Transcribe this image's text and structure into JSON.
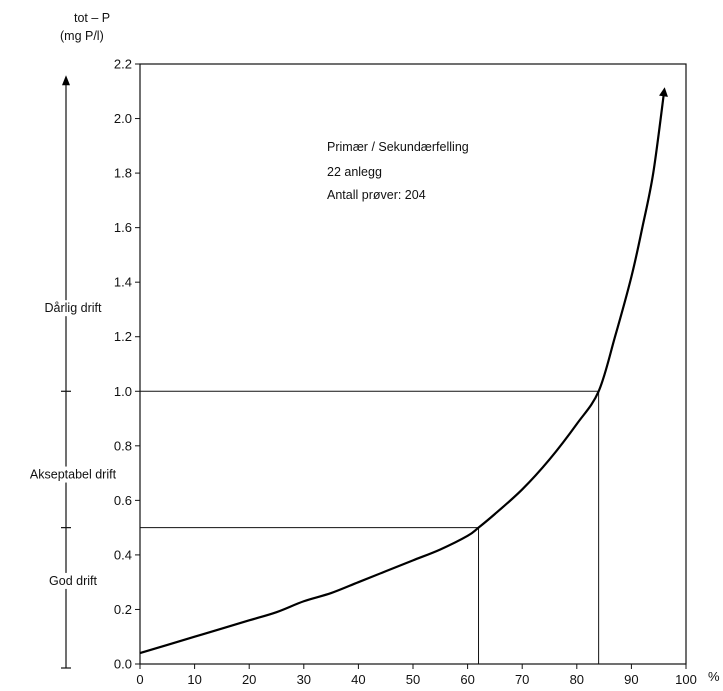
{
  "chart_data": {
    "type": "line",
    "ylabel_line1": "tot – P",
    "ylabel_line2": "(mg P/l)",
    "x_unit": "%",
    "xlim": [
      0,
      100
    ],
    "ylim": [
      0,
      2.2
    ],
    "x_ticks": [
      0,
      10,
      20,
      30,
      40,
      50,
      60,
      70,
      80,
      90,
      100
    ],
    "y_ticks": [
      0.0,
      0.2,
      0.4,
      0.6,
      0.8,
      1.0,
      1.2,
      1.4,
      1.6,
      1.8,
      2.0,
      2.2
    ],
    "y_tick_labels": [
      "0.0",
      "0.2",
      "0.4",
      "0.6",
      "0.8",
      "1.0",
      "1.2",
      "1.4",
      "1.6",
      "1.8",
      "2.0",
      "2.2"
    ],
    "annotation_lines": [
      "Primær / Sekundærfelling",
      "22  anlegg",
      "Antall prøver:  204"
    ],
    "series": [
      {
        "x": [
          0,
          5,
          10,
          15,
          20,
          25,
          30,
          35,
          40,
          45,
          50,
          55,
          60,
          62,
          65,
          70,
          75,
          80,
          84,
          87,
          90,
          92,
          94,
          96
        ],
        "y": [
          0.04,
          0.07,
          0.1,
          0.13,
          0.16,
          0.19,
          0.23,
          0.26,
          0.3,
          0.34,
          0.38,
          0.42,
          0.47,
          0.5,
          0.55,
          0.64,
          0.75,
          0.88,
          1.0,
          1.2,
          1.42,
          1.6,
          1.8,
          2.1
        ]
      }
    ],
    "reference_lines": [
      {
        "y": 0.5,
        "x": 62
      },
      {
        "y": 1.0,
        "x": 84
      }
    ],
    "categories": [
      {
        "label": "Dårlig drift",
        "from": 1.0,
        "to": 2.1
      },
      {
        "label": "Akseptabel drift",
        "from": 0.5,
        "to": 1.0
      },
      {
        "label": "God drift",
        "from": 0.0,
        "to": 0.5
      }
    ],
    "grid": false,
    "legend": "none"
  }
}
